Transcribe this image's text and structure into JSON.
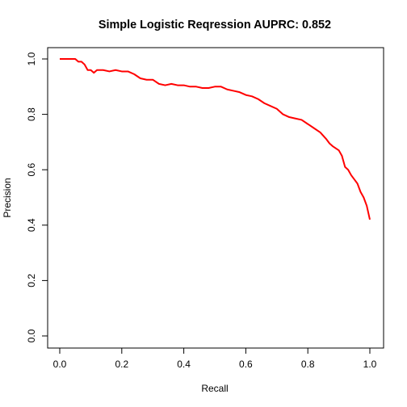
{
  "chart_data": {
    "type": "line",
    "title": "Simple Logistic Reqression AUPRC: 0.852",
    "xlabel": "Recall",
    "ylabel": "Precision",
    "xlim": [
      0,
      1
    ],
    "ylim": [
      0,
      1
    ],
    "x_ticks": [
      "0.0",
      "0.2",
      "0.4",
      "0.6",
      "0.8",
      "1.0"
    ],
    "y_ticks": [
      "0.0",
      "0.2",
      "0.4",
      "0.6",
      "0.8",
      "1.0"
    ],
    "grid": false,
    "series": [
      {
        "color": "#ff0000",
        "x": [
          0.0,
          0.05,
          0.06,
          0.07,
          0.08,
          0.09,
          0.1,
          0.11,
          0.12,
          0.14,
          0.16,
          0.18,
          0.2,
          0.22,
          0.24,
          0.26,
          0.28,
          0.3,
          0.32,
          0.34,
          0.36,
          0.38,
          0.4,
          0.42,
          0.44,
          0.46,
          0.48,
          0.5,
          0.52,
          0.54,
          0.56,
          0.58,
          0.6,
          0.62,
          0.64,
          0.66,
          0.68,
          0.7,
          0.72,
          0.74,
          0.76,
          0.78,
          0.8,
          0.82,
          0.84,
          0.86,
          0.87,
          0.88,
          0.9,
          0.91,
          0.92,
          0.93,
          0.94,
          0.95,
          0.96,
          0.97,
          0.98,
          0.99,
          1.0
        ],
        "y": [
          1.0,
          1.0,
          0.99,
          0.99,
          0.98,
          0.96,
          0.96,
          0.95,
          0.96,
          0.96,
          0.955,
          0.96,
          0.955,
          0.955,
          0.945,
          0.93,
          0.925,
          0.925,
          0.91,
          0.905,
          0.91,
          0.905,
          0.905,
          0.9,
          0.9,
          0.895,
          0.895,
          0.9,
          0.9,
          0.89,
          0.885,
          0.88,
          0.87,
          0.865,
          0.855,
          0.84,
          0.83,
          0.82,
          0.8,
          0.79,
          0.785,
          0.78,
          0.765,
          0.75,
          0.735,
          0.71,
          0.695,
          0.685,
          0.67,
          0.65,
          0.61,
          0.6,
          0.58,
          0.565,
          0.55,
          0.52,
          0.5,
          0.47,
          0.42
        ]
      }
    ]
  }
}
